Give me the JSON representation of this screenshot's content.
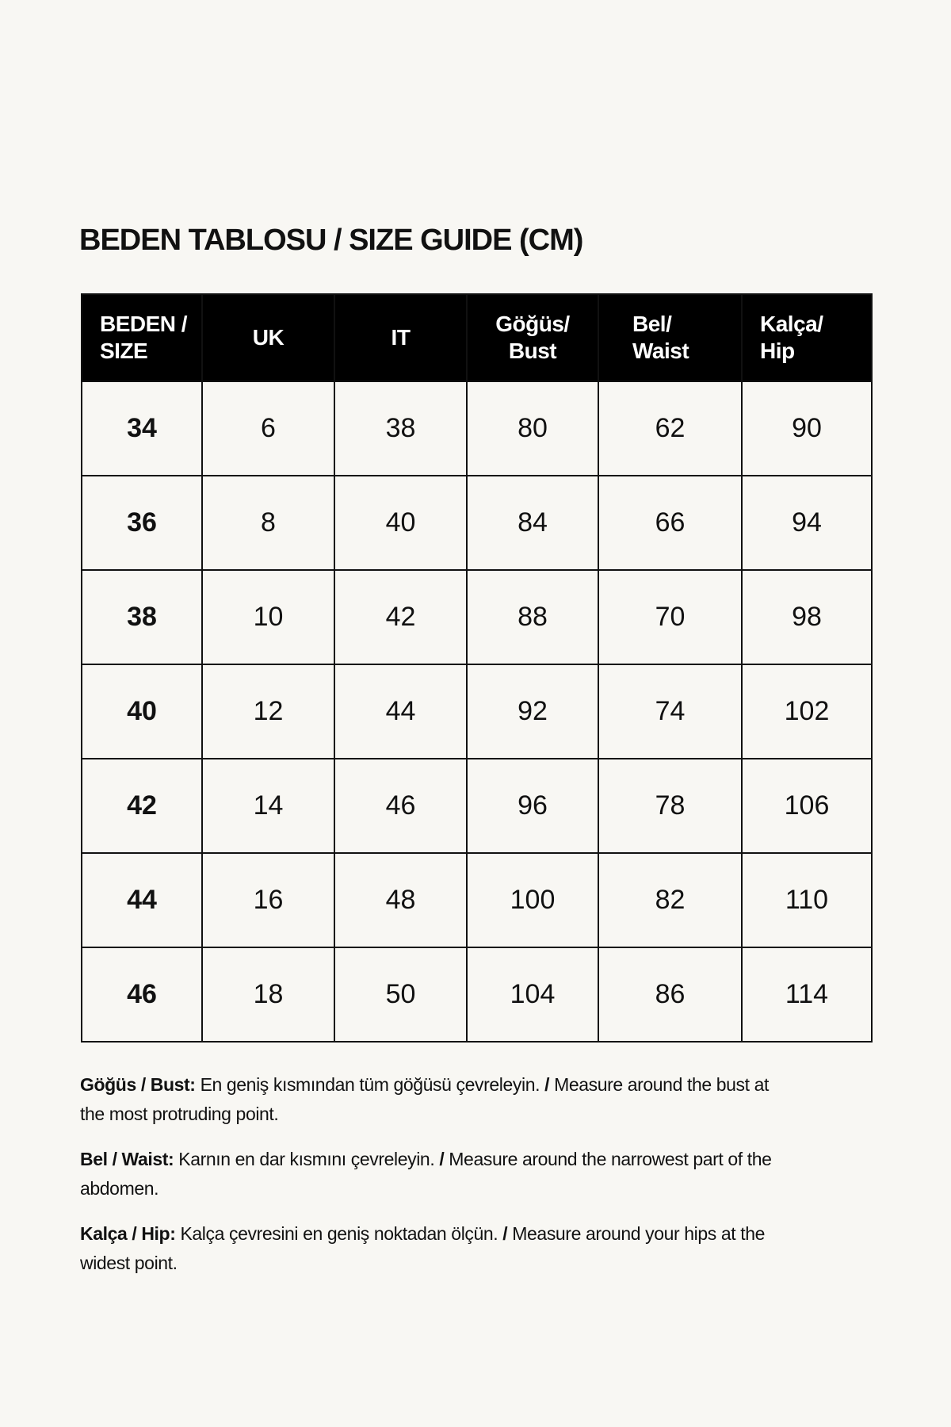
{
  "title": "BEDEN TABLOSU / SIZE GUIDE (CM)",
  "table": {
    "headers": [
      {
        "line1": "BEDEN /",
        "line2": "SIZE"
      },
      {
        "line1": "UK",
        "line2": ""
      },
      {
        "line1": "IT",
        "line2": ""
      },
      {
        "line1": "Göğüs/",
        "line2": "Bust"
      },
      {
        "line1": "Bel/",
        "line2": "Waist"
      },
      {
        "line1": "Kalça/",
        "line2": "Hip"
      }
    ],
    "rows": [
      [
        "34",
        "6",
        "38",
        "80",
        "62",
        "90"
      ],
      [
        "36",
        "8",
        "40",
        "84",
        "66",
        "94"
      ],
      [
        "38",
        "10",
        "42",
        "88",
        "70",
        "98"
      ],
      [
        "40",
        "12",
        "44",
        "92",
        "74",
        "102"
      ],
      [
        "42",
        "14",
        "46",
        "96",
        "78",
        "106"
      ],
      [
        "44",
        "16",
        "48",
        "100",
        "82",
        "110"
      ],
      [
        "46",
        "18",
        "50",
        "104",
        "86",
        "114"
      ]
    ]
  },
  "notes": [
    {
      "label": "Göğüs / Bust:",
      "tr": " En geniş kısmından tüm göğüsü çevreleyin. ",
      "sep": "/",
      "en": " Measure around the bust at the most protruding point."
    },
    {
      "label": "Bel / Waist:",
      "tr": " Karnın en dar kısmını çevreleyin. ",
      "sep": "/",
      "en": " Measure around the narrowest part of the abdomen."
    },
    {
      "label": "Kalça / Hip:",
      "tr": " Kalça çevresini en geniş noktadan ölçün. ",
      "sep": "/",
      "en": " Measure around your hips at the widest point."
    }
  ],
  "colors": {
    "background": "#f8f7f3",
    "header_bg": "#000000",
    "header_text": "#ffffff",
    "text": "#111111"
  }
}
